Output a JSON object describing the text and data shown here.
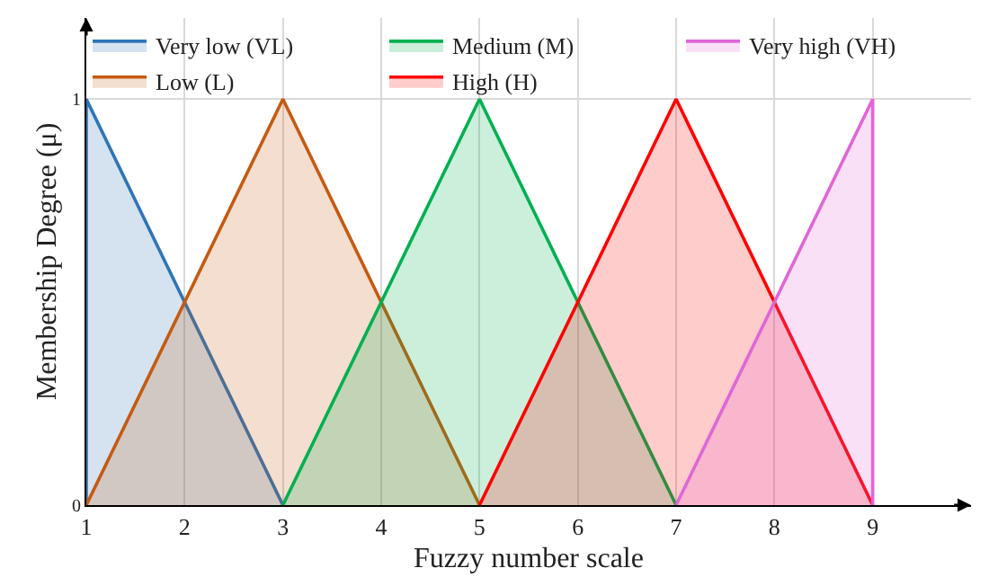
{
  "chart_data": {
    "type": "area",
    "xlabel": "Fuzzy number scale",
    "ylabel": "Membership Degree (μ)",
    "series": [
      {
        "name": "Very low (VL)",
        "color": "#2e75b6",
        "x": [
          1,
          1,
          3
        ],
        "values": [
          0,
          1,
          0
        ]
      },
      {
        "name": "Low (L)",
        "color": "#c55a11",
        "x": [
          1,
          3,
          5
        ],
        "values": [
          0,
          1,
          0
        ]
      },
      {
        "name": "Medium (M)",
        "color": "#00b050",
        "x": [
          3,
          5,
          7
        ],
        "values": [
          0,
          1,
          0
        ]
      },
      {
        "name": "High (H)",
        "color": "#ff0000",
        "x": [
          5,
          7,
          9
        ],
        "values": [
          0,
          1,
          0
        ]
      },
      {
        "name": "Very high (VH)",
        "color": "#e066d6",
        "x": [
          7,
          9,
          9
        ],
        "values": [
          0,
          1,
          0
        ]
      }
    ],
    "xlim": [
      1,
      10
    ],
    "xticks": [
      1,
      2,
      3,
      4,
      5,
      6,
      7,
      8,
      9
    ],
    "ylim": [
      0,
      1.2
    ],
    "yticks": [
      0,
      1
    ],
    "grid": true,
    "legend": "top",
    "marker": "none",
    "line_style": "solid"
  }
}
